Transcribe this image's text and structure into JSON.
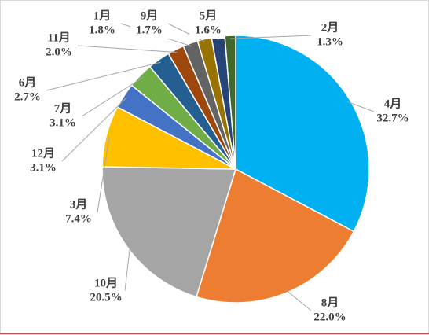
{
  "chart_data": {
    "type": "pie",
    "categories": [
      "4月",
      "8月",
      "10月",
      "3月",
      "12月",
      "7月",
      "6月",
      "11月",
      "1月",
      "9月",
      "5月",
      "2月"
    ],
    "values": [
      32.7,
      22.0,
      20.5,
      7.4,
      3.1,
      3.1,
      2.7,
      2.0,
      1.8,
      1.7,
      1.6,
      1.3
    ],
    "value_labels": [
      "32.7%",
      "22.0%",
      "20.5%",
      "7.4%",
      "3.1%",
      "3.1%",
      "2.7%",
      "2.0%",
      "1.8%",
      "1.7%",
      "1.6%",
      "1.3%"
    ],
    "colors": [
      "#00b0f0",
      "#ed7d31",
      "#a5a5a5",
      "#ffc000",
      "#4472c4",
      "#70ad47",
      "#255e91",
      "#9e480e",
      "#636363",
      "#997300",
      "#264478",
      "#43682b"
    ]
  }
}
